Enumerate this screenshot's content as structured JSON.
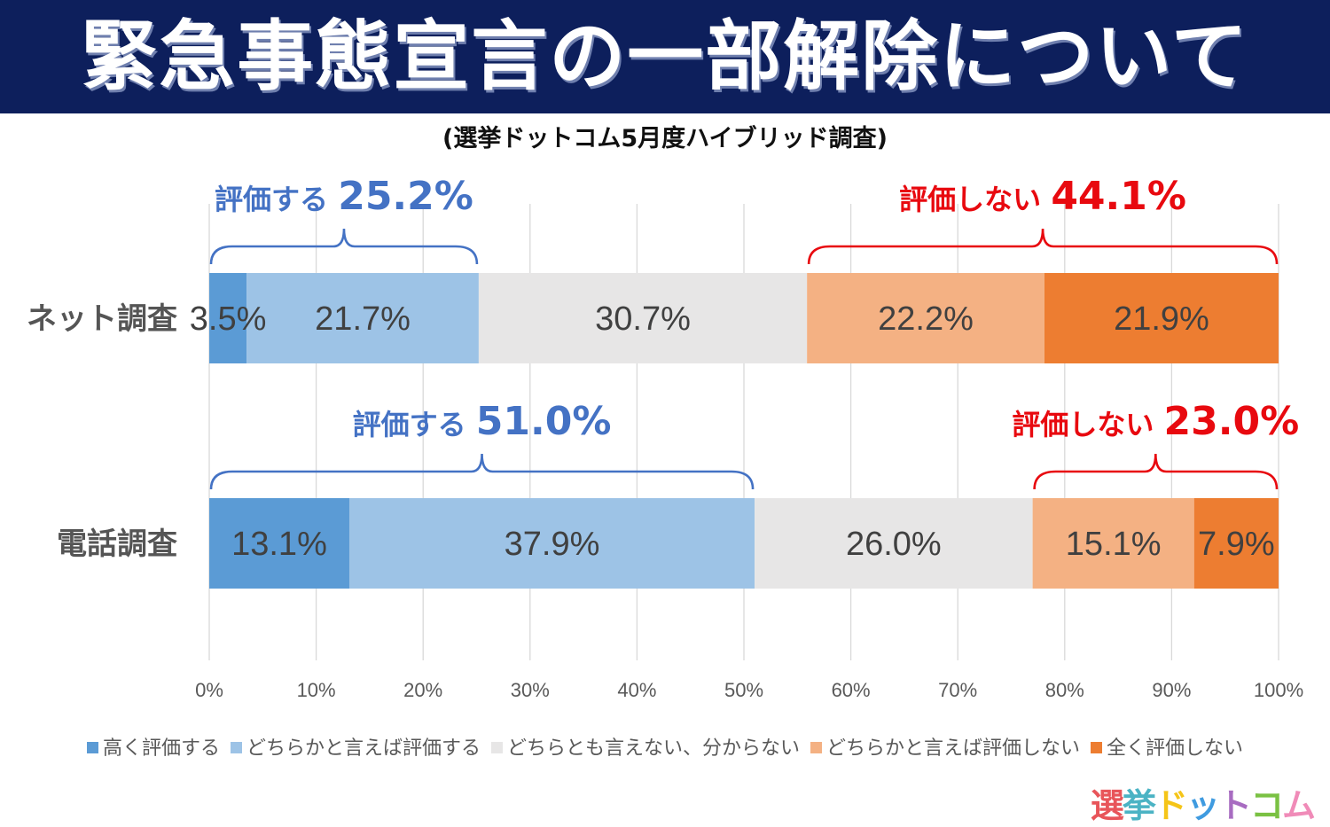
{
  "header": {
    "title": "緊急事態宣言の一部解除について",
    "subtitle": "(選挙ドットコム5月度ハイブリッド調査)"
  },
  "chart_data": {
    "type": "bar",
    "orientation": "horizontal",
    "stacked": true,
    "percent_stacked": true,
    "title": "緊急事態宣言の一部解除について",
    "subtitle": "(選挙ドットコム5月度ハイブリッド調査)",
    "categories": [
      "ネット調査",
      "電話調査"
    ],
    "series": [
      {
        "name": "高く評価する",
        "color": "#5b9bd5",
        "values": [
          3.5,
          13.1
        ],
        "labels": [
          "3.5%",
          "13.1%"
        ]
      },
      {
        "name": "どちらかと言えば評価する",
        "color": "#9dc3e6",
        "values": [
          21.7,
          37.9
        ],
        "labels": [
          "21.7%",
          "37.9%"
        ]
      },
      {
        "name": "どちらとも言えない、分からない",
        "color": "#e7e6e6",
        "values": [
          30.7,
          26.0
        ],
        "labels": [
          "30.7%",
          "26.0%"
        ]
      },
      {
        "name": "どちらかと言えば評価しない",
        "color": "#f4b183",
        "values": [
          22.2,
          15.1
        ],
        "labels": [
          "22.2%",
          "15.1%"
        ]
      },
      {
        "name": "全く評価しない",
        "color": "#ed7d31",
        "values": [
          21.9,
          7.9
        ],
        "labels": [
          "21.9%",
          "7.9%"
        ]
      }
    ],
    "xlim": [
      0,
      100
    ],
    "xticks": [
      0,
      10,
      20,
      30,
      40,
      50,
      60,
      70,
      80,
      90,
      100
    ],
    "xtick_labels": [
      "0%",
      "10%",
      "20%",
      "30%",
      "40%",
      "50%",
      "60%",
      "70%",
      "80%",
      "90%",
      "100%"
    ],
    "xlabel": "",
    "ylabel": "",
    "grid": "vertical",
    "legend_position": "bottom",
    "annotations": [
      {
        "row": 0,
        "from": 0,
        "to": 25.2,
        "label": "評価する",
        "value": "25.2%",
        "color": "#4472c4",
        "side": "positive"
      },
      {
        "row": 0,
        "from": 55.9,
        "to": 100,
        "label": "評価しない",
        "value": "44.1%",
        "color": "#e8090f",
        "side": "negative"
      },
      {
        "row": 1,
        "from": 0,
        "to": 51.0,
        "label": "評価する",
        "value": "51.0%",
        "color": "#4472c4",
        "side": "positive"
      },
      {
        "row": 1,
        "from": 77.0,
        "to": 100,
        "label": "評価しない",
        "value": "23.0%",
        "color": "#e8090f",
        "side": "negative"
      }
    ]
  },
  "logo": {
    "chars": [
      {
        "ch": "選",
        "color": "#e8555a"
      },
      {
        "ch": "挙",
        "color": "#4bb3c4"
      },
      {
        "ch": "ド",
        "color": "#f5c518"
      },
      {
        "ch": "ッ",
        "color": "#3f9be0"
      },
      {
        "ch": "ト",
        "color": "#a86cc1"
      },
      {
        "ch": "コ",
        "color": "#7ac143"
      },
      {
        "ch": "ム",
        "color": "#f08bb8"
      }
    ]
  }
}
